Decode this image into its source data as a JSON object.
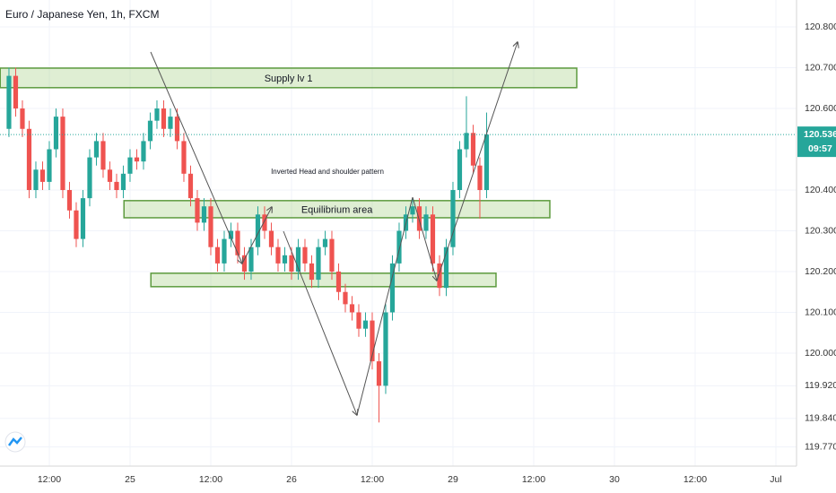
{
  "chart_data": {
    "type": "candlestick",
    "title": "Euro / Japanese Yen, 1h, FXCM",
    "x": [
      -6,
      -5,
      -4,
      -3,
      -2,
      -1,
      0,
      1,
      2,
      3,
      4,
      5,
      6,
      7,
      8,
      9,
      10,
      11,
      12,
      13,
      14,
      15,
      16,
      17,
      18,
      19,
      20,
      21,
      22,
      23,
      24,
      25,
      26,
      27,
      28,
      29,
      30,
      31,
      32,
      33,
      34,
      35,
      36,
      37,
      38,
      39,
      40,
      41,
      42,
      43,
      44,
      45,
      46,
      47,
      48,
      49,
      50,
      51,
      52,
      53,
      54,
      55,
      56,
      57,
      58,
      59,
      60,
      61,
      62,
      63,
      64,
      65
    ],
    "open": [
      120.55,
      120.68,
      120.6,
      120.55,
      120.4,
      120.45,
      120.42,
      120.5,
      120.58,
      120.4,
      120.35,
      120.28,
      120.38,
      120.48,
      120.52,
      120.45,
      120.42,
      120.4,
      120.44,
      120.48,
      120.47,
      120.52,
      120.57,
      120.6,
      120.55,
      120.58,
      120.52,
      120.44,
      120.38,
      120.32,
      120.36,
      120.26,
      120.22,
      120.28,
      120.3,
      120.24,
      120.2,
      120.26,
      120.34,
      120.3,
      120.26,
      120.22,
      120.24,
      120.2,
      120.26,
      120.22,
      120.18,
      120.26,
      120.28,
      120.2,
      120.15,
      120.12,
      120.1,
      120.06,
      120.08,
      119.98,
      119.92,
      120.1,
      120.22,
      120.3,
      120.34,
      120.36,
      120.3,
      120.34,
      120.22,
      120.16,
      120.26,
      120.4,
      120.5,
      120.54,
      120.46,
      120.4
    ],
    "high": [
      120.7,
      120.7,
      120.62,
      120.57,
      120.47,
      120.47,
      120.52,
      120.6,
      120.6,
      120.42,
      120.37,
      120.4,
      120.5,
      120.54,
      120.54,
      120.47,
      120.44,
      120.46,
      120.5,
      120.5,
      120.54,
      120.59,
      120.62,
      120.62,
      120.6,
      120.6,
      120.54,
      120.46,
      120.4,
      120.38,
      120.38,
      120.28,
      120.3,
      120.32,
      120.32,
      120.26,
      120.28,
      120.36,
      120.36,
      120.32,
      120.28,
      120.26,
      120.26,
      120.28,
      120.28,
      120.24,
      120.28,
      120.3,
      120.3,
      120.22,
      120.17,
      120.14,
      120.12,
      120.1,
      120.1,
      120.0,
      120.12,
      120.24,
      120.32,
      120.36,
      120.38,
      120.38,
      120.36,
      120.36,
      120.24,
      120.28,
      120.42,
      120.52,
      120.63,
      120.56,
      120.48,
      120.59
    ],
    "low": [
      120.53,
      120.58,
      120.53,
      120.38,
      120.38,
      120.4,
      120.4,
      120.48,
      120.38,
      120.33,
      120.26,
      120.26,
      120.36,
      120.46,
      120.43,
      120.4,
      120.38,
      120.38,
      120.42,
      120.45,
      120.45,
      120.5,
      120.55,
      120.53,
      120.53,
      120.5,
      120.42,
      120.36,
      120.3,
      120.3,
      120.24,
      120.2,
      120.2,
      120.26,
      120.22,
      120.18,
      120.18,
      120.24,
      120.28,
      120.24,
      120.2,
      120.2,
      120.18,
      120.18,
      120.2,
      120.16,
      120.16,
      120.24,
      120.18,
      120.13,
      120.1,
      120.08,
      120.04,
      120.04,
      119.96,
      119.83,
      119.9,
      120.08,
      120.2,
      120.28,
      120.32,
      120.28,
      120.28,
      120.2,
      120.14,
      120.14,
      120.24,
      120.38,
      120.48,
      120.44,
      120.33,
      120.38
    ],
    "close": [
      120.68,
      120.6,
      120.55,
      120.4,
      120.45,
      120.42,
      120.5,
      120.58,
      120.4,
      120.35,
      120.28,
      120.38,
      120.48,
      120.52,
      120.45,
      120.42,
      120.4,
      120.44,
      120.48,
      120.47,
      120.52,
      120.57,
      120.6,
      120.55,
      120.58,
      120.52,
      120.44,
      120.38,
      120.32,
      120.36,
      120.26,
      120.22,
      120.28,
      120.3,
      120.24,
      120.2,
      120.26,
      120.34,
      120.3,
      120.26,
      120.22,
      120.24,
      120.2,
      120.26,
      120.22,
      120.18,
      120.26,
      120.28,
      120.2,
      120.15,
      120.12,
      120.1,
      120.06,
      120.08,
      119.98,
      119.92,
      120.1,
      120.22,
      120.3,
      120.34,
      120.36,
      120.3,
      120.34,
      120.22,
      120.16,
      120.26,
      120.4,
      120.5,
      120.54,
      120.46,
      120.4,
      120.536
    ],
    "up_color": "#26a69a",
    "down_color": "#ef5350",
    "xlim": [
      -7.33,
      111.07
    ],
    "xticks": [
      {
        "value": 0,
        "label": "12:00"
      },
      {
        "value": 12,
        "label": "25"
      },
      {
        "value": 24,
        "label": "12:00"
      },
      {
        "value": 36,
        "label": "26"
      },
      {
        "value": 48,
        "label": "12:00"
      },
      {
        "value": 60,
        "label": "29"
      },
      {
        "value": 72,
        "label": "12:00"
      },
      {
        "value": 84,
        "label": "30"
      },
      {
        "value": 96,
        "label": "12:00"
      },
      {
        "value": 108,
        "label": "Jul"
      }
    ],
    "ylim": [
      119.723,
      120.866
    ],
    "yticks": [
      {
        "value": 120.8,
        "label": "120.800"
      },
      {
        "value": 120.7,
        "label": "120.700"
      },
      {
        "value": 120.6,
        "label": "120.600"
      },
      {
        "value": 120.4,
        "label": "120.400"
      },
      {
        "value": 120.3,
        "label": "120.300"
      },
      {
        "value": 120.2,
        "label": "120.200"
      },
      {
        "value": 120.1,
        "label": "120.100"
      },
      {
        "value": 120.0,
        "label": "120.000"
      },
      {
        "value": 119.92,
        "label": "119.920"
      },
      {
        "value": 119.84,
        "label": "119.840"
      },
      {
        "value": 119.77,
        "label": "119.770"
      }
    ],
    "grid": true,
    "last_price": {
      "value": 120.536,
      "label": "120.536",
      "countdown": "09:57"
    },
    "zones": [
      {
        "label": "Supply lv 1",
        "x": [
          -7.3,
          78.4
        ],
        "y": [
          120.651,
          120.699
        ]
      },
      {
        "label": "Equilibrium area",
        "x": [
          11.1,
          74.4
        ],
        "y": [
          120.332,
          120.374
        ]
      },
      {
        "x": [
          15.1,
          66.4
        ],
        "y": [
          120.163,
          120.196
        ]
      }
    ],
    "annotation": "Inverted Head and shoulder pattern"
  }
}
